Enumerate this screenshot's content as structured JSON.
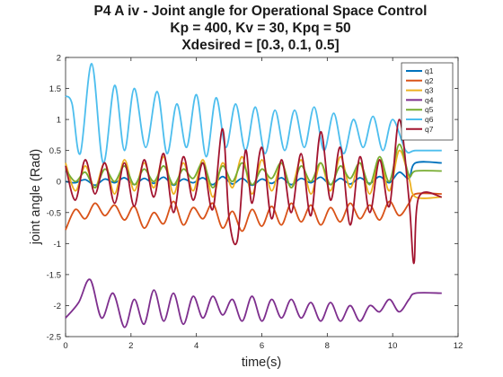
{
  "chart_data": {
    "type": "line",
    "title": [
      "P4 A iv - Joint angle for Operational Space Control",
      "Kp = 400, Kv = 30, Kpq = 50",
      "Xdesired = [0.3, 0.1, 0.5]"
    ],
    "xlabel": "time(s)",
    "ylabel": "joint angle (Rad)",
    "xlim": [
      0,
      12
    ],
    "ylim": [
      -2.5,
      2
    ],
    "xticks": [
      0,
      2,
      4,
      6,
      8,
      10,
      12
    ],
    "yticks": [
      -2.5,
      -2,
      -1.5,
      -1,
      -0.5,
      0,
      0.5,
      1,
      1.5,
      2
    ],
    "grid": false,
    "box": true,
    "legend_position": "top-right",
    "series": [
      {
        "name": "q1",
        "color": "#0072BD",
        "points": [
          [
            0,
            0.0
          ],
          [
            0.3,
            -0.02
          ],
          [
            0.6,
            0.03
          ],
          [
            0.9,
            -0.06
          ],
          [
            1.2,
            0.04
          ],
          [
            1.5,
            -0.02
          ],
          [
            1.8,
            0.06
          ],
          [
            2.1,
            -0.05
          ],
          [
            2.4,
            0.05
          ],
          [
            2.7,
            -0.03
          ],
          [
            3.0,
            0.07
          ],
          [
            3.3,
            -0.06
          ],
          [
            3.6,
            0.04
          ],
          [
            3.9,
            -0.02
          ],
          [
            4.2,
            0.06
          ],
          [
            4.5,
            -0.05
          ],
          [
            4.8,
            0.08
          ],
          [
            5.1,
            -0.04
          ],
          [
            5.4,
            0.05
          ],
          [
            5.7,
            -0.06
          ],
          [
            6.0,
            0.04
          ],
          [
            6.3,
            -0.03
          ],
          [
            6.6,
            0.06
          ],
          [
            6.9,
            -0.05
          ],
          [
            7.2,
            0.05
          ],
          [
            7.5,
            -0.02
          ],
          [
            7.8,
            0.07
          ],
          [
            8.1,
            -0.05
          ],
          [
            8.4,
            0.05
          ],
          [
            8.7,
            -0.04
          ],
          [
            9.0,
            0.06
          ],
          [
            9.3,
            -0.03
          ],
          [
            9.6,
            0.08
          ],
          [
            9.9,
            -0.02
          ],
          [
            10.2,
            0.15
          ],
          [
            10.5,
            0.05
          ],
          [
            10.7,
            0.3
          ],
          [
            11.5,
            0.3
          ]
        ]
      },
      {
        "name": "q2",
        "color": "#D95319",
        "points": [
          [
            0,
            -0.78
          ],
          [
            0.3,
            -0.45
          ],
          [
            0.6,
            -0.6
          ],
          [
            0.9,
            -0.35
          ],
          [
            1.2,
            -0.55
          ],
          [
            1.5,
            -0.38
          ],
          [
            1.8,
            -0.62
          ],
          [
            2.1,
            -0.4
          ],
          [
            2.4,
            -0.75
          ],
          [
            2.7,
            -0.5
          ],
          [
            3.0,
            -0.68
          ],
          [
            3.3,
            -0.32
          ],
          [
            3.6,
            -0.7
          ],
          [
            3.9,
            -0.42
          ],
          [
            4.2,
            -0.6
          ],
          [
            4.5,
            -0.35
          ],
          [
            4.8,
            -0.75
          ],
          [
            5.1,
            -0.48
          ],
          [
            5.4,
            -0.8
          ],
          [
            5.7,
            -0.45
          ],
          [
            6.0,
            -0.72
          ],
          [
            6.3,
            -0.4
          ],
          [
            6.6,
            -0.7
          ],
          [
            6.9,
            -0.35
          ],
          [
            7.2,
            -0.65
          ],
          [
            7.5,
            -0.38
          ],
          [
            7.8,
            -0.7
          ],
          [
            8.1,
            -0.42
          ],
          [
            8.4,
            -0.65
          ],
          [
            8.7,
            -0.35
          ],
          [
            9.0,
            -0.6
          ],
          [
            9.3,
            -0.38
          ],
          [
            9.6,
            -0.62
          ],
          [
            9.9,
            -0.32
          ],
          [
            10.2,
            -0.55
          ],
          [
            10.5,
            -0.35
          ],
          [
            10.7,
            -0.2
          ],
          [
            11.5,
            -0.2
          ]
        ]
      },
      {
        "name": "q3",
        "color": "#EDB120",
        "points": [
          [
            0,
            0.3
          ],
          [
            0.3,
            -0.15
          ],
          [
            0.6,
            0.25
          ],
          [
            0.9,
            -0.1
          ],
          [
            1.2,
            0.3
          ],
          [
            1.5,
            -0.2
          ],
          [
            1.8,
            0.35
          ],
          [
            2.1,
            -0.15
          ],
          [
            2.4,
            0.3
          ],
          [
            2.7,
            -0.1
          ],
          [
            3.0,
            0.4
          ],
          [
            3.3,
            -0.2
          ],
          [
            3.6,
            0.3
          ],
          [
            3.9,
            -0.15
          ],
          [
            4.2,
            0.35
          ],
          [
            4.5,
            -0.25
          ],
          [
            4.8,
            0.3
          ],
          [
            5.1,
            -0.1
          ],
          [
            5.4,
            0.4
          ],
          [
            5.7,
            -0.2
          ],
          [
            6.0,
            0.35
          ],
          [
            6.3,
            -0.15
          ],
          [
            6.6,
            0.3
          ],
          [
            6.9,
            -0.1
          ],
          [
            7.2,
            0.35
          ],
          [
            7.5,
            -0.2
          ],
          [
            7.8,
            0.3
          ],
          [
            8.1,
            -0.15
          ],
          [
            8.4,
            0.4
          ],
          [
            8.7,
            -0.1
          ],
          [
            9.0,
            0.3
          ],
          [
            9.3,
            -0.2
          ],
          [
            9.6,
            0.35
          ],
          [
            9.9,
            -0.15
          ],
          [
            10.2,
            0.5
          ],
          [
            10.5,
            0.05
          ],
          [
            10.7,
            -0.25
          ],
          [
            11.5,
            -0.25
          ]
        ]
      },
      {
        "name": "q4",
        "color": "#7E2F8E",
        "points": [
          [
            0,
            -2.2
          ],
          [
            0.4,
            -1.95
          ],
          [
            0.75,
            -1.58
          ],
          [
            1.1,
            -2.2
          ],
          [
            1.45,
            -1.8
          ],
          [
            1.8,
            -2.35
          ],
          [
            2.1,
            -1.9
          ],
          [
            2.4,
            -2.3
          ],
          [
            2.7,
            -1.75
          ],
          [
            3.0,
            -2.25
          ],
          [
            3.3,
            -1.8
          ],
          [
            3.6,
            -2.3
          ],
          [
            3.9,
            -1.85
          ],
          [
            4.2,
            -2.2
          ],
          [
            4.5,
            -1.85
          ],
          [
            4.8,
            -2.15
          ],
          [
            5.1,
            -1.9
          ],
          [
            5.4,
            -2.25
          ],
          [
            5.7,
            -1.85
          ],
          [
            6.0,
            -2.25
          ],
          [
            6.3,
            -1.9
          ],
          [
            6.6,
            -2.2
          ],
          [
            6.9,
            -1.9
          ],
          [
            7.2,
            -2.2
          ],
          [
            7.5,
            -1.95
          ],
          [
            7.8,
            -2.25
          ],
          [
            8.1,
            -1.95
          ],
          [
            8.4,
            -2.25
          ],
          [
            8.7,
            -2.0
          ],
          [
            9.0,
            -2.25
          ],
          [
            9.3,
            -2.0
          ],
          [
            9.6,
            -2.1
          ],
          [
            9.9,
            -1.9
          ],
          [
            10.2,
            -2.1
          ],
          [
            10.5,
            -1.9
          ],
          [
            10.7,
            -1.8
          ],
          [
            11.5,
            -1.8
          ]
        ]
      },
      {
        "name": "q5",
        "color": "#77AC30",
        "points": [
          [
            0,
            0.2
          ],
          [
            0.3,
            0.0
          ],
          [
            0.6,
            0.15
          ],
          [
            0.9,
            -0.1
          ],
          [
            1.2,
            0.2
          ],
          [
            1.5,
            0.0
          ],
          [
            1.8,
            0.25
          ],
          [
            2.1,
            -0.05
          ],
          [
            2.4,
            0.2
          ],
          [
            2.7,
            0.0
          ],
          [
            3.0,
            0.25
          ],
          [
            3.3,
            -0.05
          ],
          [
            3.6,
            0.2
          ],
          [
            3.9,
            0.05
          ],
          [
            4.2,
            0.3
          ],
          [
            4.5,
            -0.1
          ],
          [
            4.8,
            0.25
          ],
          [
            5.1,
            0.0
          ],
          [
            5.4,
            0.3
          ],
          [
            5.7,
            -0.05
          ],
          [
            6.0,
            0.2
          ],
          [
            6.3,
            0.05
          ],
          [
            6.6,
            0.3
          ],
          [
            6.9,
            -0.1
          ],
          [
            7.2,
            0.25
          ],
          [
            7.5,
            0.0
          ],
          [
            7.8,
            0.3
          ],
          [
            8.1,
            -0.05
          ],
          [
            8.4,
            0.25
          ],
          [
            8.7,
            0.05
          ],
          [
            9.0,
            0.3
          ],
          [
            9.3,
            -0.05
          ],
          [
            9.6,
            0.4
          ],
          [
            9.9,
            0.0
          ],
          [
            10.2,
            0.6
          ],
          [
            10.5,
            0.1
          ],
          [
            10.7,
            0.17
          ],
          [
            11.5,
            0.17
          ]
        ]
      },
      {
        "name": "q6",
        "color": "#4DBEEE",
        "points": [
          [
            0,
            1.38
          ],
          [
            0.2,
            1.25
          ],
          [
            0.45,
            0.45
          ],
          [
            0.8,
            1.9
          ],
          [
            1.15,
            0.3
          ],
          [
            1.5,
            1.55
          ],
          [
            1.8,
            0.5
          ],
          [
            2.1,
            1.5
          ],
          [
            2.45,
            0.55
          ],
          [
            2.8,
            1.45
          ],
          [
            3.1,
            0.45
          ],
          [
            3.4,
            1.25
          ],
          [
            3.7,
            0.55
          ],
          [
            4.0,
            1.4
          ],
          [
            4.3,
            0.4
          ],
          [
            4.6,
            1.35
          ],
          [
            4.9,
            0.55
          ],
          [
            5.2,
            1.25
          ],
          [
            5.5,
            0.5
          ],
          [
            5.8,
            1.2
          ],
          [
            6.1,
            0.45
          ],
          [
            6.4,
            1.15
          ],
          [
            6.7,
            0.5
          ],
          [
            7.0,
            1.15
          ],
          [
            7.3,
            0.55
          ],
          [
            7.6,
            1.2
          ],
          [
            7.9,
            0.5
          ],
          [
            8.2,
            1.1
          ],
          [
            8.5,
            0.45
          ],
          [
            8.8,
            1.0
          ],
          [
            9.1,
            0.55
          ],
          [
            9.4,
            1.05
          ],
          [
            9.7,
            0.5
          ],
          [
            10.0,
            1.0
          ],
          [
            10.4,
            0.5
          ],
          [
            10.7,
            0.5
          ],
          [
            11.5,
            0.5
          ]
        ]
      },
      {
        "name": "q7",
        "color": "#A2142F",
        "points": [
          [
            0,
            0.25
          ],
          [
            0.3,
            -0.3
          ],
          [
            0.6,
            0.35
          ],
          [
            0.9,
            -0.2
          ],
          [
            1.2,
            0.3
          ],
          [
            1.5,
            -0.35
          ],
          [
            1.8,
            0.3
          ],
          [
            2.1,
            -0.4
          ],
          [
            2.4,
            0.35
          ],
          [
            2.7,
            -0.25
          ],
          [
            3.0,
            0.45
          ],
          [
            3.3,
            -0.5
          ],
          [
            3.6,
            0.4
          ],
          [
            3.9,
            -0.3
          ],
          [
            4.2,
            0.3
          ],
          [
            4.5,
            -0.45
          ],
          [
            4.8,
            0.85
          ],
          [
            5.0,
            -0.6
          ],
          [
            5.25,
            -0.95
          ],
          [
            5.5,
            0.5
          ],
          [
            5.7,
            -0.35
          ],
          [
            6.0,
            0.55
          ],
          [
            6.3,
            -0.6
          ],
          [
            6.6,
            0.35
          ],
          [
            6.9,
            -0.5
          ],
          [
            7.2,
            0.45
          ],
          [
            7.5,
            -0.55
          ],
          [
            7.8,
            0.8
          ],
          [
            8.1,
            -0.3
          ],
          [
            8.4,
            0.55
          ],
          [
            8.7,
            -0.7
          ],
          [
            9.0,
            0.4
          ],
          [
            9.3,
            -0.5
          ],
          [
            9.6,
            0.35
          ],
          [
            9.9,
            -0.4
          ],
          [
            10.2,
            1.0
          ],
          [
            10.5,
            -0.3
          ],
          [
            10.65,
            -1.32
          ],
          [
            10.8,
            -0.25
          ],
          [
            11.5,
            -0.25
          ]
        ]
      }
    ]
  }
}
